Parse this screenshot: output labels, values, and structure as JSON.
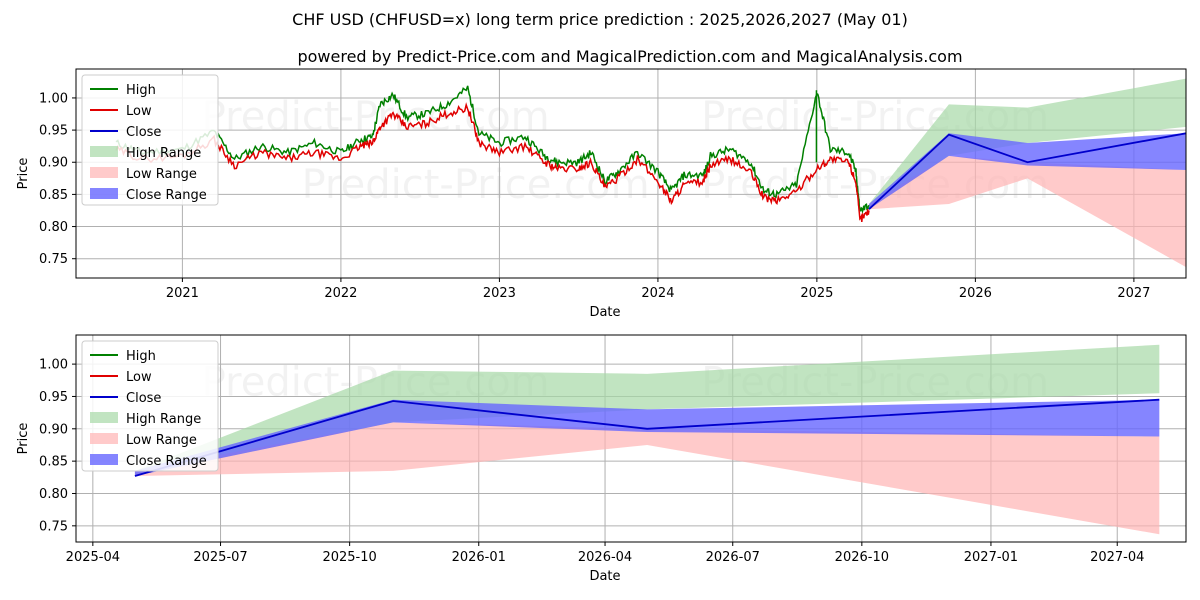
{
  "title": "CHF USD (CHFUSD=x) long term price prediction : 2025,2026,2027 (May 01)",
  "subtitle": "powered by Predict-Price.com and MagicalPrediction.com and MagicalAnalysis.com",
  "watermark": "Predict-Price.com",
  "colors": {
    "high": "#008000",
    "low": "#e00000",
    "close": "#0000cc",
    "high_range": "#a6d8a6",
    "low_range": "#ffb3b3",
    "close_range": "#6666ff"
  },
  "chart_data": [
    {
      "type": "line",
      "name": "history-and-forecast",
      "xlabel": "Date",
      "ylabel": "Price",
      "xlim": [
        "2020-05-01",
        "2027-05-01"
      ],
      "ylim": [
        0.72,
        1.045
      ],
      "x_ticks": [
        "2021",
        "2022",
        "2023",
        "2024",
        "2025",
        "2026",
        "2027"
      ],
      "y_ticks": [
        "0.75",
        "0.80",
        "0.85",
        "0.90",
        "0.95",
        "1.00"
      ],
      "grid": true,
      "legend": "top-left",
      "legend_entries": [
        "High",
        "Low",
        "Close",
        "High Range",
        "Low Range",
        "Close Range"
      ],
      "history": {
        "x": [
          "2020-08-01",
          "2020-10-01",
          "2021-01-01",
          "2021-03-15",
          "2021-05-01",
          "2021-07-01",
          "2021-09-01",
          "2021-11-01",
          "2022-01-01",
          "2022-02-15",
          "2022-03-15",
          "2022-04-01",
          "2022-05-01",
          "2022-06-01",
          "2022-07-15",
          "2022-09-01",
          "2022-10-20",
          "2022-11-15",
          "2023-01-01",
          "2023-03-01",
          "2023-04-15",
          "2023-05-15",
          "2023-07-01",
          "2023-08-01",
          "2023-09-01",
          "2023-10-01",
          "2023-11-15",
          "2024-01-01",
          "2024-02-01",
          "2024-03-01",
          "2024-04-15",
          "2024-05-01",
          "2024-06-15",
          "2024-08-01",
          "2024-09-01",
          "2024-10-01",
          "2024-11-15",
          "2025-01-01",
          "2025-02-01",
          "2025-03-15",
          "2025-04-01",
          "2025-04-10",
          "2025-05-01"
        ],
        "low": [
          0.92,
          0.905,
          0.91,
          0.935,
          0.895,
          0.915,
          0.905,
          0.915,
          0.905,
          0.925,
          0.93,
          0.955,
          0.975,
          0.955,
          0.96,
          0.975,
          0.985,
          0.93,
          0.915,
          0.925,
          0.9,
          0.89,
          0.89,
          0.9,
          0.86,
          0.875,
          0.905,
          0.87,
          0.84,
          0.865,
          0.87,
          0.895,
          0.905,
          0.885,
          0.845,
          0.84,
          0.855,
          0.89,
          0.905,
          0.9,
          0.87,
          0.81,
          0.825
        ],
        "high": [
          0.93,
          0.915,
          0.92,
          0.948,
          0.905,
          0.925,
          0.915,
          0.93,
          0.915,
          0.935,
          0.94,
          0.99,
          1.005,
          0.97,
          0.975,
          0.99,
          1.015,
          0.945,
          0.93,
          0.94,
          0.91,
          0.9,
          0.9,
          0.915,
          0.87,
          0.885,
          0.915,
          0.885,
          0.855,
          0.88,
          0.88,
          0.91,
          0.92,
          0.9,
          0.855,
          0.85,
          0.865,
          1.01,
          0.92,
          0.915,
          0.885,
          0.825,
          0.833
        ]
      },
      "forecast": {
        "x": [
          "2025-05-01",
          "2025-11-01",
          "2026-05-01",
          "2027-05-01"
        ],
        "close": [
          0.827,
          0.943,
          0.9,
          0.945
        ],
        "high_range": [
          [
            0.827,
            0.835
          ],
          [
            0.91,
            0.99
          ],
          [
            0.93,
            0.985
          ],
          [
            0.955,
            1.03
          ]
        ],
        "low_range": [
          [
            0.827,
            0.835
          ],
          [
            0.835,
            0.91
          ],
          [
            0.875,
            0.9
          ],
          [
            0.737,
            0.888
          ]
        ],
        "close_range": [
          [
            0.827,
            0.835
          ],
          [
            0.91,
            0.945
          ],
          [
            0.895,
            0.93
          ],
          [
            0.888,
            0.945
          ]
        ]
      }
    },
    {
      "type": "line",
      "name": "forecast-zoom",
      "xlabel": "Date",
      "ylabel": "Price",
      "xlim": [
        "2025-03-20",
        "2027-05-20"
      ],
      "ylim": [
        0.725,
        1.045
      ],
      "x_ticks": [
        "2025-04",
        "2025-07",
        "2025-10",
        "2026-01",
        "2026-04",
        "2026-07",
        "2026-10",
        "2027-01",
        "2027-04"
      ],
      "y_ticks": [
        "0.75",
        "0.80",
        "0.85",
        "0.90",
        "0.95",
        "1.00"
      ],
      "grid": true,
      "legend": "top-left",
      "legend_entries": [
        "High",
        "Low",
        "Close",
        "High Range",
        "Low Range",
        "Close Range"
      ]
    }
  ]
}
